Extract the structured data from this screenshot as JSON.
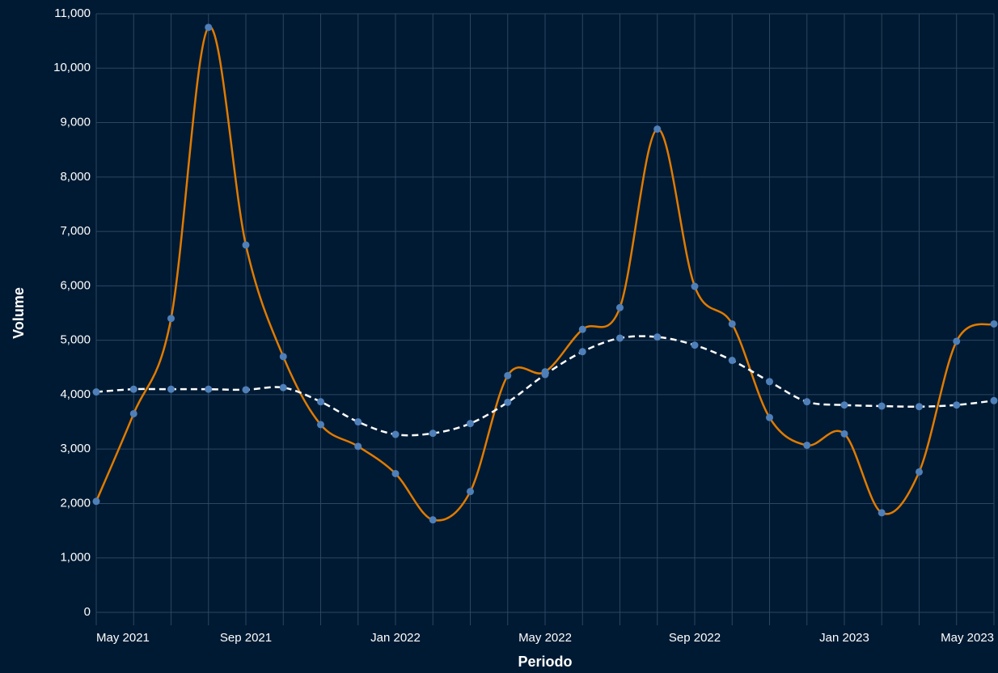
{
  "chart_data": {
    "type": "line",
    "x_label": "Periodo",
    "y_label": "Volume",
    "x": [
      "2021-05",
      "2021-06",
      "2021-07",
      "2021-08",
      "2021-09",
      "2021-10",
      "2021-11",
      "2021-12",
      "2022-01",
      "2022-02",
      "2022-03",
      "2022-04",
      "2022-05",
      "2022-06",
      "2022-07",
      "2022-08",
      "2022-09",
      "2022-10",
      "2022-11",
      "2022-12",
      "2023-01",
      "2023-02",
      "2023-03",
      "2023-04",
      "2023-05"
    ],
    "series": [
      {
        "color": "#e07b00",
        "dashed": false,
        "values": [
          2040,
          3650,
          5400,
          10750,
          6750,
          4700,
          3450,
          3050,
          2550,
          1700,
          2220,
          4350,
          4420,
          5200,
          5600,
          8880,
          5990,
          5300,
          3580,
          3070,
          3280,
          1830,
          2580,
          4980,
          5300
        ]
      },
      {
        "color": "#ffffff",
        "dashed": true,
        "values": [
          4050,
          4100,
          4100,
          4100,
          4090,
          4130,
          3870,
          3500,
          3270,
          3290,
          3470,
          3860,
          4370,
          4790,
          5040,
          5060,
          4910,
          4630,
          4240,
          3870,
          3810,
          3790,
          3780,
          3810,
          3890
        ]
      }
    ],
    "marker_color": "#4f7fb8",
    "xlim": [
      "2021-05",
      "2023-05"
    ],
    "xticks": [
      {
        "value": "2021-05",
        "label": "May 2021"
      },
      {
        "value": "2021-09",
        "label": "Sep 2021"
      },
      {
        "value": "2022-01",
        "label": "Jan 2022"
      },
      {
        "value": "2022-05",
        "label": "May 2022"
      },
      {
        "value": "2022-09",
        "label": "Sep 2022"
      },
      {
        "value": "2023-01",
        "label": "Jan 2023"
      },
      {
        "value": "2023-05",
        "label": "May 2023"
      }
    ],
    "ylim": [
      0,
      11000
    ],
    "yticks": [
      0,
      {
        "value": 1000,
        "label": "1,000"
      },
      {
        "value": 2000,
        "label": "2,000"
      },
      {
        "value": 3000,
        "label": "3,000"
      },
      {
        "value": 4000,
        "label": "4,000"
      },
      {
        "value": 5000,
        "label": "5,000"
      },
      {
        "value": 6000,
        "label": "6,000"
      },
      {
        "value": 7000,
        "label": "7,000"
      },
      {
        "value": 8000,
        "label": "8,000"
      },
      {
        "value": 9000,
        "label": "9,000"
      },
      {
        "value": 10000,
        "label": "10,000"
      },
      {
        "value": 11000,
        "label": "11,000"
      }
    ],
    "grid": true
  }
}
